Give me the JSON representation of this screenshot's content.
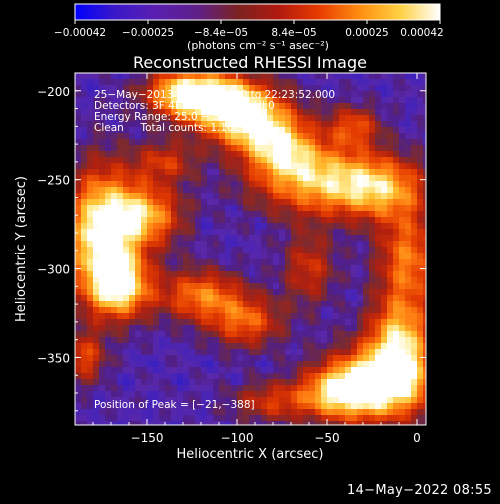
{
  "chart_data": {
    "type": "heatmap",
    "title": "Reconstructed RHESSI Image",
    "xlabel": "Heliocentric X (arcsec)",
    "ylabel": "Heliocentric Y (arcsec)",
    "xlim": [
      -190,
      5
    ],
    "ylim": [
      -388,
      -190
    ],
    "x_ticks": [
      {
        "value": -150,
        "label": "−150"
      },
      {
        "value": -100,
        "label": "−100"
      },
      {
        "value": -50,
        "label": "−50"
      },
      {
        "value": 0,
        "label": "0"
      }
    ],
    "y_ticks": [
      {
        "value": -200,
        "label": "−200"
      },
      {
        "value": -250,
        "label": "−250"
      },
      {
        "value": -300,
        "label": "−300"
      },
      {
        "value": -350,
        "label": "−350"
      }
    ],
    "colorbar": {
      "range": [
        -0.00042,
        0.00042
      ],
      "tick_labels": [
        "−0.00042",
        "−0.00025",
        "−8.4e−05",
        "8.4e−05",
        "0.00025",
        "0.00042"
      ],
      "units_label": "(photons cm⁻² s⁻¹ asec⁻²)",
      "colors": [
        "#0000ff",
        "#3a18c8",
        "#5a1fb0",
        "#5e1f8a",
        "#7a2222",
        "#b01a10",
        "#e83a00",
        "#ff8c10",
        "#ffd040",
        "#ffffff"
      ]
    },
    "annotations": {
      "time": "25−May−2013 22:17:52.000 to 22:23:52.000",
      "detectors": "Detectors: 3F 4F 5F 6F 7F 8F, All 0",
      "energy": "Energy Range: 25.0 − 50.0 keV",
      "method": "Clean     Total counts: 1.16E+04",
      "peak": "Position of Peak = [−21,−388]"
    },
    "bright_regions": [
      {
        "name": "upper ridge",
        "x": -110,
        "y": -205,
        "intensity": 1.0
      },
      {
        "name": "left ridge",
        "x": -175,
        "y": -285,
        "intensity": 1.0
      },
      {
        "name": "lower right",
        "x": -20,
        "y": -365,
        "intensity": 1.0
      }
    ]
  },
  "footer": {
    "date": "14−May−2022 08:55"
  },
  "colors": {
    "background": "#000000",
    "frame": "#ffffff",
    "text": "#ffffff"
  }
}
